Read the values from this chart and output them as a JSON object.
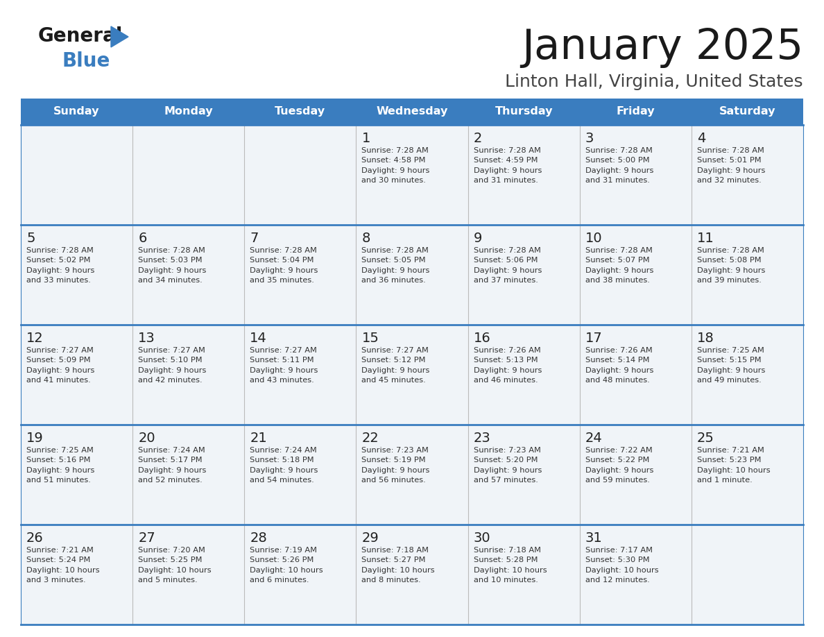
{
  "title": "January 2025",
  "subtitle": "Linton Hall, Virginia, United States",
  "days_of_week": [
    "Sunday",
    "Monday",
    "Tuesday",
    "Wednesday",
    "Thursday",
    "Friday",
    "Saturday"
  ],
  "header_bg": "#3a7dbf",
  "header_text": "#ffffff",
  "cell_bg": "#f0f4f8",
  "border_color": "#3a7dbf",
  "day_text_color": "#222222",
  "info_text_color": "#333333",
  "title_color": "#1a1a1a",
  "subtitle_color": "#444444",
  "weeks": [
    [
      {
        "day": "",
        "info": ""
      },
      {
        "day": "",
        "info": ""
      },
      {
        "day": "",
        "info": ""
      },
      {
        "day": "1",
        "info": "Sunrise: 7:28 AM\nSunset: 4:58 PM\nDaylight: 9 hours\nand 30 minutes."
      },
      {
        "day": "2",
        "info": "Sunrise: 7:28 AM\nSunset: 4:59 PM\nDaylight: 9 hours\nand 31 minutes."
      },
      {
        "day": "3",
        "info": "Sunrise: 7:28 AM\nSunset: 5:00 PM\nDaylight: 9 hours\nand 31 minutes."
      },
      {
        "day": "4",
        "info": "Sunrise: 7:28 AM\nSunset: 5:01 PM\nDaylight: 9 hours\nand 32 minutes."
      }
    ],
    [
      {
        "day": "5",
        "info": "Sunrise: 7:28 AM\nSunset: 5:02 PM\nDaylight: 9 hours\nand 33 minutes."
      },
      {
        "day": "6",
        "info": "Sunrise: 7:28 AM\nSunset: 5:03 PM\nDaylight: 9 hours\nand 34 minutes."
      },
      {
        "day": "7",
        "info": "Sunrise: 7:28 AM\nSunset: 5:04 PM\nDaylight: 9 hours\nand 35 minutes."
      },
      {
        "day": "8",
        "info": "Sunrise: 7:28 AM\nSunset: 5:05 PM\nDaylight: 9 hours\nand 36 minutes."
      },
      {
        "day": "9",
        "info": "Sunrise: 7:28 AM\nSunset: 5:06 PM\nDaylight: 9 hours\nand 37 minutes."
      },
      {
        "day": "10",
        "info": "Sunrise: 7:28 AM\nSunset: 5:07 PM\nDaylight: 9 hours\nand 38 minutes."
      },
      {
        "day": "11",
        "info": "Sunrise: 7:28 AM\nSunset: 5:08 PM\nDaylight: 9 hours\nand 39 minutes."
      }
    ],
    [
      {
        "day": "12",
        "info": "Sunrise: 7:27 AM\nSunset: 5:09 PM\nDaylight: 9 hours\nand 41 minutes."
      },
      {
        "day": "13",
        "info": "Sunrise: 7:27 AM\nSunset: 5:10 PM\nDaylight: 9 hours\nand 42 minutes."
      },
      {
        "day": "14",
        "info": "Sunrise: 7:27 AM\nSunset: 5:11 PM\nDaylight: 9 hours\nand 43 minutes."
      },
      {
        "day": "15",
        "info": "Sunrise: 7:27 AM\nSunset: 5:12 PM\nDaylight: 9 hours\nand 45 minutes."
      },
      {
        "day": "16",
        "info": "Sunrise: 7:26 AM\nSunset: 5:13 PM\nDaylight: 9 hours\nand 46 minutes."
      },
      {
        "day": "17",
        "info": "Sunrise: 7:26 AM\nSunset: 5:14 PM\nDaylight: 9 hours\nand 48 minutes."
      },
      {
        "day": "18",
        "info": "Sunrise: 7:25 AM\nSunset: 5:15 PM\nDaylight: 9 hours\nand 49 minutes."
      }
    ],
    [
      {
        "day": "19",
        "info": "Sunrise: 7:25 AM\nSunset: 5:16 PM\nDaylight: 9 hours\nand 51 minutes."
      },
      {
        "day": "20",
        "info": "Sunrise: 7:24 AM\nSunset: 5:17 PM\nDaylight: 9 hours\nand 52 minutes."
      },
      {
        "day": "21",
        "info": "Sunrise: 7:24 AM\nSunset: 5:18 PM\nDaylight: 9 hours\nand 54 minutes."
      },
      {
        "day": "22",
        "info": "Sunrise: 7:23 AM\nSunset: 5:19 PM\nDaylight: 9 hours\nand 56 minutes."
      },
      {
        "day": "23",
        "info": "Sunrise: 7:23 AM\nSunset: 5:20 PM\nDaylight: 9 hours\nand 57 minutes."
      },
      {
        "day": "24",
        "info": "Sunrise: 7:22 AM\nSunset: 5:22 PM\nDaylight: 9 hours\nand 59 minutes."
      },
      {
        "day": "25",
        "info": "Sunrise: 7:21 AM\nSunset: 5:23 PM\nDaylight: 10 hours\nand 1 minute."
      }
    ],
    [
      {
        "day": "26",
        "info": "Sunrise: 7:21 AM\nSunset: 5:24 PM\nDaylight: 10 hours\nand 3 minutes."
      },
      {
        "day": "27",
        "info": "Sunrise: 7:20 AM\nSunset: 5:25 PM\nDaylight: 10 hours\nand 5 minutes."
      },
      {
        "day": "28",
        "info": "Sunrise: 7:19 AM\nSunset: 5:26 PM\nDaylight: 10 hours\nand 6 minutes."
      },
      {
        "day": "29",
        "info": "Sunrise: 7:18 AM\nSunset: 5:27 PM\nDaylight: 10 hours\nand 8 minutes."
      },
      {
        "day": "30",
        "info": "Sunrise: 7:18 AM\nSunset: 5:28 PM\nDaylight: 10 hours\nand 10 minutes."
      },
      {
        "day": "31",
        "info": "Sunrise: 7:17 AM\nSunset: 5:30 PM\nDaylight: 10 hours\nand 12 minutes."
      },
      {
        "day": "",
        "info": ""
      }
    ]
  ]
}
